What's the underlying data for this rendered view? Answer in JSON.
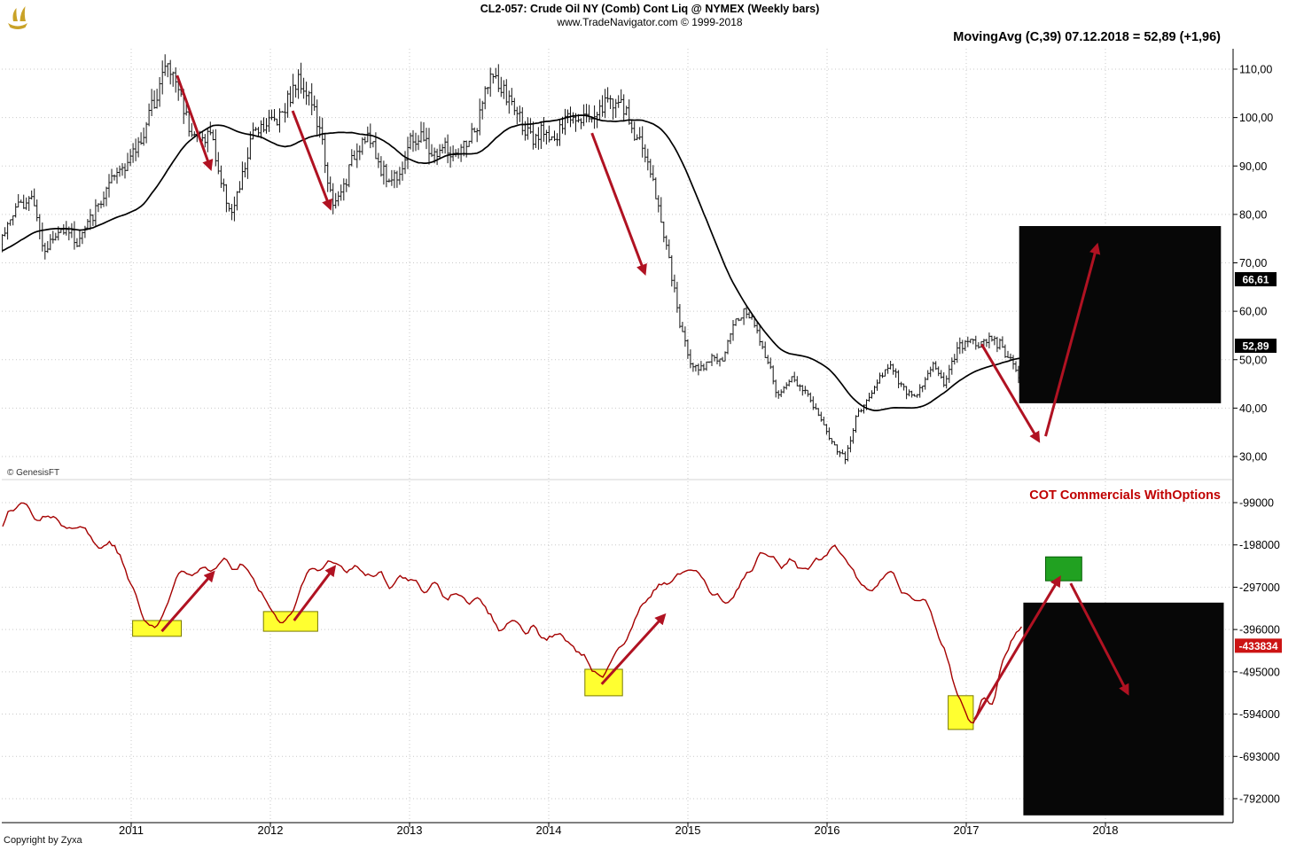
{
  "header": {
    "symbol_title": "CL2-057:  Crude Oil NY (Comb) Cont Liq @ NYMEX  (Weekly bars)",
    "website_line": "www.TradeNavigator.com © 1999-2018",
    "indicator_label": "MovingAvg (C,39)   07.12.2018 = 52,89 (+1,96)"
  },
  "price_panel": {
    "y_ticks": [
      "110,00",
      "100,00",
      "90,00",
      "80,00",
      "70,00",
      "60,00",
      "50,00",
      "40,00",
      "30,00"
    ],
    "badges": [
      {
        "text": "66,61",
        "value": 66.61
      },
      {
        "text": "52,89",
        "value": 52.89
      }
    ]
  },
  "cot_panel": {
    "title": "COT Commercials WithOptions",
    "y_ticks": [
      "-99000",
      "-198000",
      "-297000",
      "-396000",
      "-495000",
      "-594000",
      "-693000",
      "-792000"
    ],
    "badge": {
      "text": "-433834",
      "value": -433834
    }
  },
  "x_axis": {
    "years": [
      "2011",
      "2012",
      "2013",
      "2014",
      "2015",
      "2016",
      "2017",
      "2018"
    ]
  },
  "footer": {
    "genesis": "© GenesisFT",
    "copyright": "Copyright by Zyxa"
  },
  "icons": {
    "logo": "genesis-ship-logo"
  },
  "colors": {
    "bars": "#141414",
    "ma": "#000000",
    "cot": "#a40000",
    "arrow": "#b01222",
    "grid": "#c9c9c9",
    "yellow": "#ffff30",
    "yellow_border": "#7a7a00",
    "green": "#21a121",
    "green_border": "#065f06",
    "black_box": "#070707",
    "badge_black": "#000000",
    "badge_red": "#cc1414",
    "axis": "#000000",
    "cot_title": "#c00000",
    "logo_gold": "#c9a227",
    "separator": "#d4d4d4"
  },
  "chart_data": [
    {
      "type": "ohlc-bars",
      "title": "CL2-057 Crude Oil NY (Comb) Cont Liq @ NYMEX — weekly bars with MovingAvg(C,39) overlay",
      "x_unit": "decimal year",
      "x_range": [
        2010.06,
        2018.91
      ],
      "ylim": [
        25,
        115
      ],
      "y_ticks": [
        110,
        100,
        90,
        80,
        70,
        60,
        50,
        40,
        30
      ],
      "bars_end": 2017.4,
      "overlay": {
        "name": "MovingAvg (C,39)",
        "period": 39,
        "last_value": 52.89,
        "last_change": 1.96,
        "last_date": "07.12.2018"
      },
      "close_anchors": [
        [
          2009.25,
          62
        ],
        [
          2009.35,
          66
        ],
        [
          2009.45,
          69
        ],
        [
          2009.55,
          71
        ],
        [
          2009.65,
          70
        ],
        [
          2009.75,
          77
        ],
        [
          2009.85,
          78
        ],
        [
          2009.95,
          74
        ],
        [
          2010.05,
          74
        ],
        [
          2010.13,
          79
        ],
        [
          2010.21,
          82
        ],
        [
          2010.29,
          85
        ],
        [
          2010.37,
          73
        ],
        [
          2010.45,
          75
        ],
        [
          2010.53,
          78
        ],
        [
          2010.61,
          74
        ],
        [
          2010.69,
          78
        ],
        [
          2010.77,
          82
        ],
        [
          2010.85,
          86
        ],
        [
          2010.93,
          90
        ],
        [
          2011.01,
          92
        ],
        [
          2011.09,
          97
        ],
        [
          2011.17,
          104
        ],
        [
          2011.25,
          111
        ],
        [
          2011.33,
          107
        ],
        [
          2011.41,
          99
        ],
        [
          2011.49,
          95
        ],
        [
          2011.57,
          97
        ],
        [
          2011.65,
          86
        ],
        [
          2011.73,
          80
        ],
        [
          2011.81,
          89
        ],
        [
          2011.89,
          98
        ],
        [
          2011.97,
          99
        ],
        [
          2012.05,
          100
        ],
        [
          2012.13,
          104
        ],
        [
          2012.21,
          108
        ],
        [
          2012.29,
          104
        ],
        [
          2012.37,
          95
        ],
        [
          2012.45,
          81
        ],
        [
          2012.53,
          86
        ],
        [
          2012.61,
          93
        ],
        [
          2012.69,
          97
        ],
        [
          2012.77,
          91
        ],
        [
          2012.85,
          87
        ],
        [
          2012.93,
          89
        ],
        [
          2013.01,
          95
        ],
        [
          2013.09,
          96
        ],
        [
          2013.17,
          92
        ],
        [
          2013.25,
          94
        ],
        [
          2013.33,
          91
        ],
        [
          2013.41,
          95
        ],
        [
          2013.49,
          98
        ],
        [
          2013.57,
          109
        ],
        [
          2013.65,
          106
        ],
        [
          2013.73,
          103
        ],
        [
          2013.81,
          99
        ],
        [
          2013.89,
          94
        ],
        [
          2013.97,
          98
        ],
        [
          2014.05,
          95
        ],
        [
          2014.13,
          100
        ],
        [
          2014.21,
          101
        ],
        [
          2014.29,
          100
        ],
        [
          2014.37,
          102
        ],
        [
          2014.45,
          104
        ],
        [
          2014.53,
          102
        ],
        [
          2014.61,
          97
        ],
        [
          2014.69,
          93
        ],
        [
          2014.77,
          84
        ],
        [
          2014.85,
          73
        ],
        [
          2014.93,
          59
        ],
        [
          2015.01,
          50
        ],
        [
          2015.09,
          48
        ],
        [
          2015.17,
          51
        ],
        [
          2015.25,
          49
        ],
        [
          2015.33,
          58
        ],
        [
          2015.41,
          60
        ],
        [
          2015.49,
          57
        ],
        [
          2015.57,
          50
        ],
        [
          2015.65,
          42
        ],
        [
          2015.73,
          46
        ],
        [
          2015.81,
          45
        ],
        [
          2015.89,
          41
        ],
        [
          2015.97,
          37
        ],
        [
          2016.05,
          32
        ],
        [
          2016.13,
          30
        ],
        [
          2016.21,
          38
        ],
        [
          2016.29,
          42
        ],
        [
          2016.37,
          46
        ],
        [
          2016.45,
          49
        ],
        [
          2016.53,
          45
        ],
        [
          2016.61,
          42
        ],
        [
          2016.69,
          45
        ],
        [
          2016.77,
          49
        ],
        [
          2016.85,
          45
        ],
        [
          2016.93,
          52
        ],
        [
          2017.01,
          54
        ],
        [
          2017.09,
          53
        ],
        [
          2017.17,
          54
        ],
        [
          2017.25,
          53
        ],
        [
          2017.33,
          49
        ],
        [
          2017.4,
          44
        ]
      ]
    },
    {
      "type": "line",
      "title": "COT Commercials WithOptions",
      "x_unit": "decimal year",
      "ylim": [
        -831000,
        -60000
      ],
      "y_ticks": [
        -99000,
        -198000,
        -297000,
        -396000,
        -495000,
        -594000,
        -693000,
        -792000
      ],
      "last_value": -433834,
      "anchors": [
        [
          2010.05,
          -170000
        ],
        [
          2010.15,
          -110000
        ],
        [
          2010.25,
          -102000
        ],
        [
          2010.35,
          -140000
        ],
        [
          2010.45,
          -118000
        ],
        [
          2010.55,
          -165000
        ],
        [
          2010.65,
          -148000
        ],
        [
          2010.75,
          -205000
        ],
        [
          2010.85,
          -185000
        ],
        [
          2010.95,
          -248000
        ],
        [
          2011.03,
          -315000
        ],
        [
          2011.1,
          -382000
        ],
        [
          2011.18,
          -390000
        ],
        [
          2011.26,
          -345000
        ],
        [
          2011.34,
          -255000
        ],
        [
          2011.42,
          -270000
        ],
        [
          2011.5,
          -238000
        ],
        [
          2011.58,
          -258000
        ],
        [
          2011.66,
          -228000
        ],
        [
          2011.74,
          -262000
        ],
        [
          2011.82,
          -244000
        ],
        [
          2011.9,
          -282000
        ],
        [
          2011.98,
          -335000
        ],
        [
          2012.06,
          -368000
        ],
        [
          2012.14,
          -372000
        ],
        [
          2012.22,
          -305000
        ],
        [
          2012.3,
          -238000
        ],
        [
          2012.38,
          -255000
        ],
        [
          2012.46,
          -230000
        ],
        [
          2012.54,
          -262000
        ],
        [
          2012.62,
          -242000
        ],
        [
          2012.7,
          -282000
        ],
        [
          2012.78,
          -262000
        ],
        [
          2012.86,
          -296000
        ],
        [
          2012.94,
          -272000
        ],
        [
          2013.02,
          -288000
        ],
        [
          2013.1,
          -312000
        ],
        [
          2013.18,
          -288000
        ],
        [
          2013.26,
          -328000
        ],
        [
          2013.34,
          -302000
        ],
        [
          2013.42,
          -342000
        ],
        [
          2013.5,
          -318000
        ],
        [
          2013.58,
          -368000
        ],
        [
          2013.66,
          -394000
        ],
        [
          2013.74,
          -368000
        ],
        [
          2013.82,
          -404000
        ],
        [
          2013.9,
          -382000
        ],
        [
          2013.98,
          -420000
        ],
        [
          2014.06,
          -398000
        ],
        [
          2014.14,
          -432000
        ],
        [
          2014.22,
          -455000
        ],
        [
          2014.3,
          -478000
        ],
        [
          2014.38,
          -522000
        ],
        [
          2014.46,
          -470000
        ],
        [
          2014.54,
          -420000
        ],
        [
          2014.62,
          -368000
        ],
        [
          2014.7,
          -330000
        ],
        [
          2014.78,
          -298000
        ],
        [
          2014.86,
          -282000
        ],
        [
          2014.94,
          -262000
        ],
        [
          2015.02,
          -252000
        ],
        [
          2015.1,
          -282000
        ],
        [
          2015.18,
          -318000
        ],
        [
          2015.26,
          -342000
        ],
        [
          2015.34,
          -308000
        ],
        [
          2015.42,
          -268000
        ],
        [
          2015.5,
          -232000
        ],
        [
          2015.58,
          -212000
        ],
        [
          2015.66,
          -248000
        ],
        [
          2015.74,
          -228000
        ],
        [
          2015.82,
          -262000
        ],
        [
          2015.9,
          -242000
        ],
        [
          2015.98,
          -222000
        ],
        [
          2016.06,
          -202000
        ],
        [
          2016.14,
          -232000
        ],
        [
          2016.22,
          -278000
        ],
        [
          2016.3,
          -318000
        ],
        [
          2016.38,
          -292000
        ],
        [
          2016.46,
          -268000
        ],
        [
          2016.54,
          -302000
        ],
        [
          2016.62,
          -338000
        ],
        [
          2016.7,
          -330000
        ],
        [
          2016.78,
          -390000
        ],
        [
          2016.86,
          -460000
        ],
        [
          2016.94,
          -540000
        ],
        [
          2017.0,
          -590000
        ],
        [
          2017.06,
          -610000
        ],
        [
          2017.12,
          -545000
        ],
        [
          2017.18,
          -575000
        ],
        [
          2017.24,
          -500000
        ],
        [
          2017.3,
          -445000
        ],
        [
          2017.36,
          -405000
        ],
        [
          2017.41,
          -380000
        ]
      ]
    }
  ],
  "annotations": {
    "arrows": {
      "price": [
        {
          "t1": 2011.33,
          "p1": 108.7,
          "t2": 2011.57,
          "p2": 89.5,
          "dir": "down"
        },
        {
          "t1": 2012.16,
          "p1": 101.4,
          "t2": 2012.43,
          "p2": 81.3,
          "dir": "down"
        },
        {
          "t1": 2014.31,
          "p1": 96.8,
          "t2": 2014.69,
          "p2": 67.9,
          "dir": "down"
        },
        {
          "t1": 2017.11,
          "p1": 53.2,
          "t2": 2017.52,
          "p2": 33.3,
          "dir": "down"
        },
        {
          "t1": 2017.57,
          "p1": 34.2,
          "t2": 2017.94,
          "p2": 73.6,
          "dir": "up"
        }
      ],
      "cot": [
        {
          "t1": 2011.22,
          "v1": -400000,
          "t2": 2011.59,
          "v2": -263000,
          "dir": "up"
        },
        {
          "t1": 2012.17,
          "v1": -375000,
          "t2": 2012.46,
          "v2": -250000,
          "dir": "up"
        },
        {
          "t1": 2014.38,
          "v1": -524000,
          "t2": 2014.83,
          "v2": -363000,
          "dir": "up"
        },
        {
          "t1": 2017.06,
          "v1": -607000,
          "t2": 2017.67,
          "v2": -275000,
          "dir": "up"
        },
        {
          "t1": 2017.75,
          "v1": -288000,
          "t2": 2018.16,
          "v2": -545000,
          "dir": "down"
        }
      ]
    },
    "highlight_boxes": {
      "yellow": [
        {
          "t1": 2011.01,
          "t2": 2011.36,
          "v1": -375000,
          "v2": -412000
        },
        {
          "t1": 2011.95,
          "t2": 2012.34,
          "v1": -354000,
          "v2": -400000
        },
        {
          "t1": 2014.26,
          "t2": 2014.53,
          "v1": -489000,
          "v2": -551000
        },
        {
          "t1": 2016.87,
          "t2": 2017.05,
          "v1": -551000,
          "v2": -630000
        }
      ],
      "green": {
        "t1": 2017.57,
        "t2": 2017.83,
        "v1": -226000,
        "v2": -282000
      },
      "black_price": {
        "t1": 2017.38,
        "t2": 2018.83,
        "p1": 77.6,
        "p2": 41.0
      },
      "black_cot": {
        "t1": 2017.41,
        "t2": 2018.85,
        "v1": -333000,
        "v2": -831000
      }
    }
  }
}
